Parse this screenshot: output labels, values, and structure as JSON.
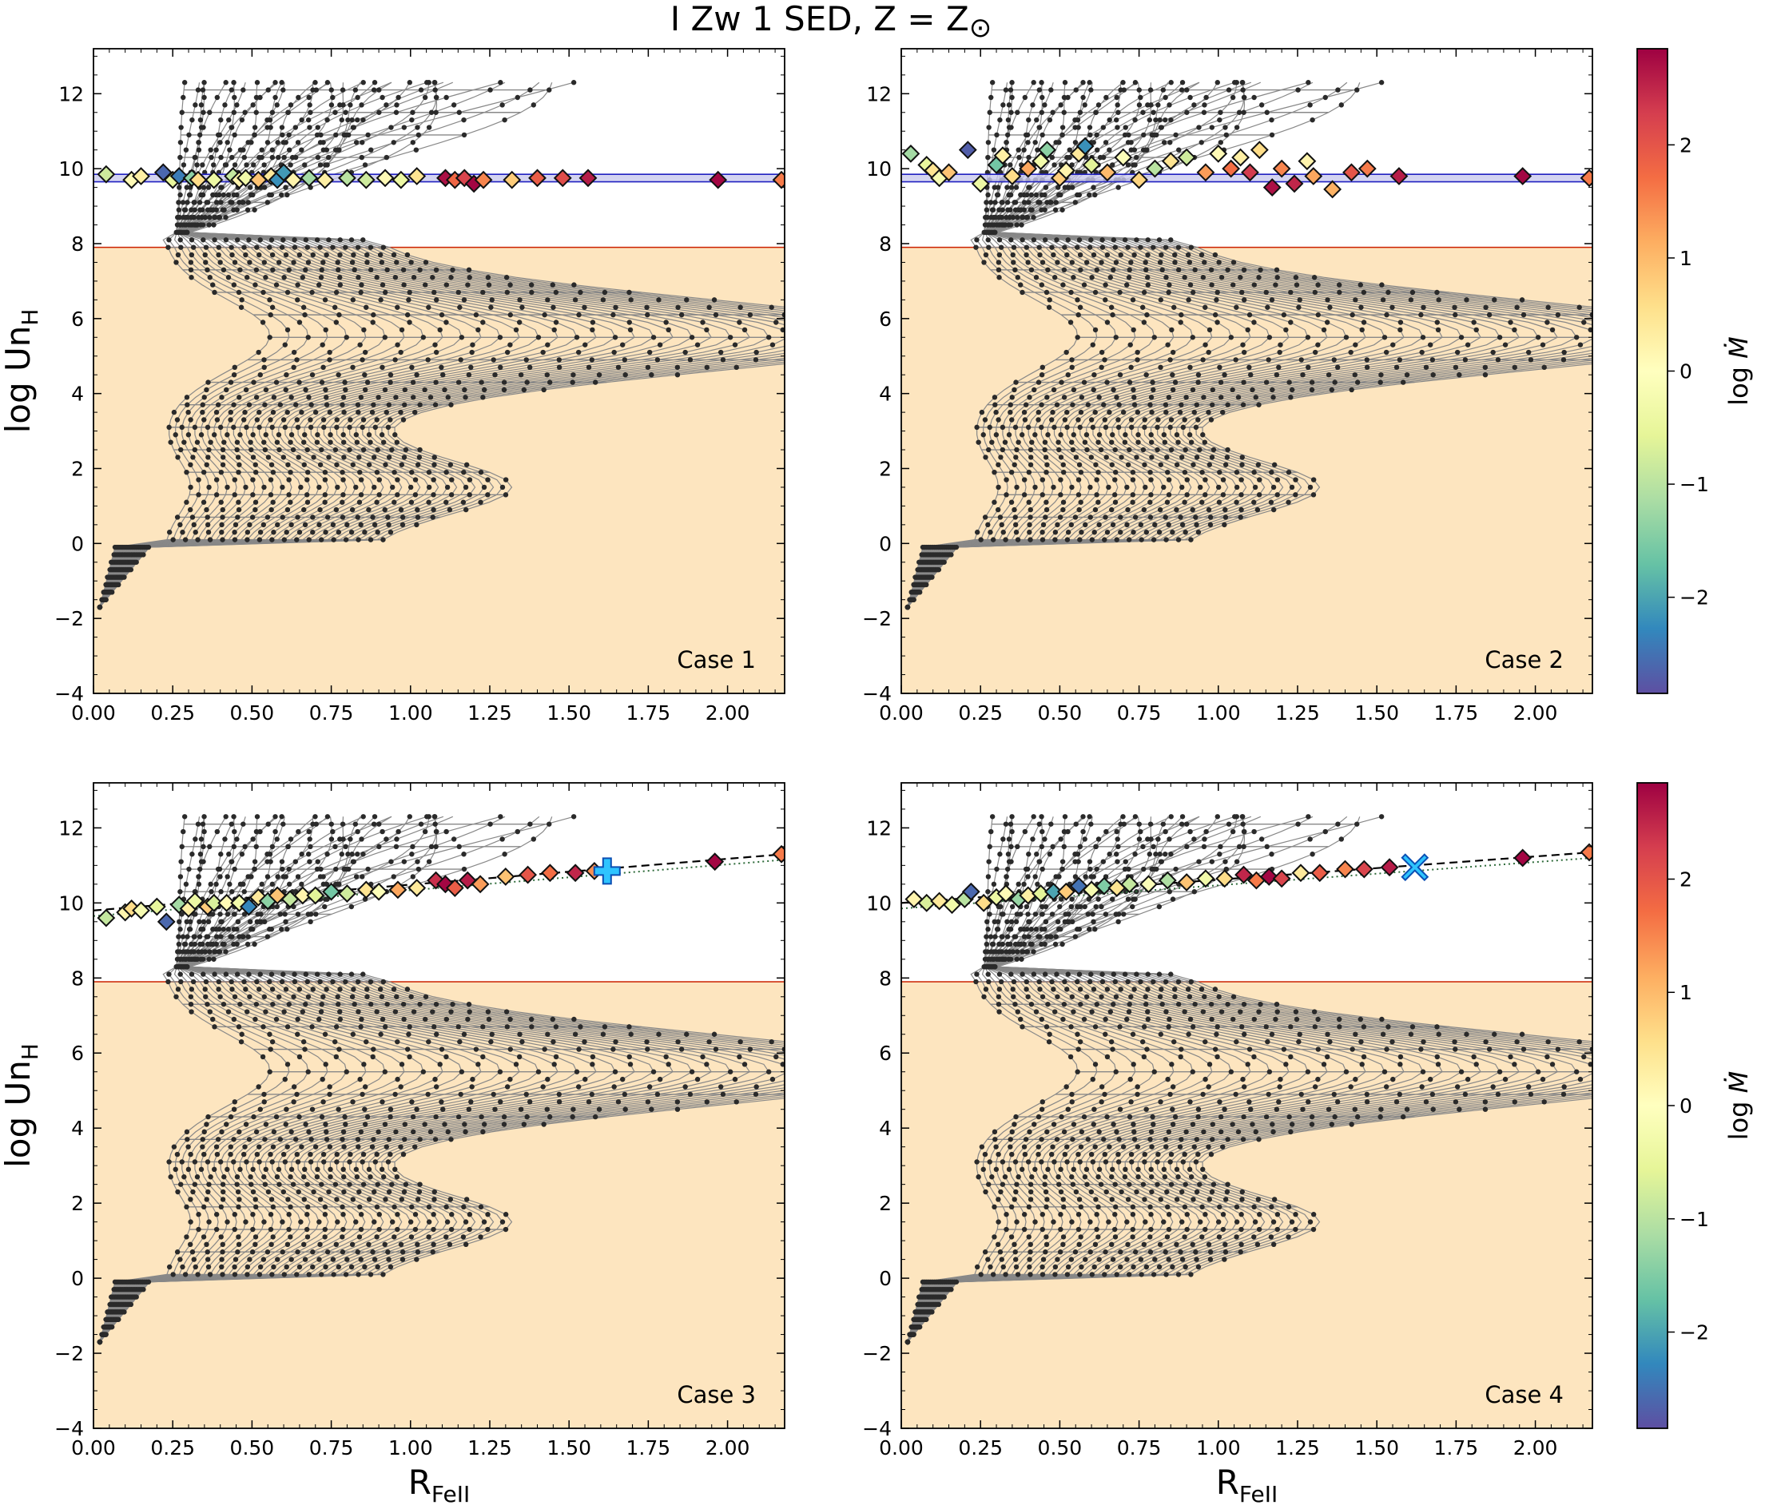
{
  "figure_title": "I Zw 1 SED, Z = Z",
  "figure_title_symbol": "⊙",
  "chart_data": [
    {
      "type": "scatter",
      "panel": "top-left",
      "case_label": "Case 1",
      "xlabel_main": "R",
      "xlabel_sub": "FeII",
      "ylabel_main": "log Un",
      "ylabel_sub": "H",
      "xlim": [
        0.0,
        2.18
      ],
      "ylim": [
        -4,
        13.2
      ],
      "xticks": [
        "0.00",
        "0.25",
        "0.50",
        "0.75",
        "1.00",
        "1.25",
        "1.50",
        "1.75",
        "2.00"
      ],
      "yticks": [
        "−4",
        "−2",
        "0",
        "2",
        "4",
        "6",
        "8",
        "10",
        "12"
      ],
      "shaded_region_ymax": 7.9,
      "band_center": 9.75,
      "band_halfwidth": 0.1,
      "observations": [
        {
          "x": 0.04,
          "y": 9.85,
          "c": -0.8
        },
        {
          "x": 0.12,
          "y": 9.7,
          "c": 0.1
        },
        {
          "x": 0.15,
          "y": 9.8,
          "c": 0.3
        },
        {
          "x": 0.22,
          "y": 9.9,
          "c": -2.6
        },
        {
          "x": 0.25,
          "y": 9.7,
          "c": -0.5
        },
        {
          "x": 0.27,
          "y": 9.8,
          "c": -2.4
        },
        {
          "x": 0.31,
          "y": 9.75,
          "c": -1.4
        },
        {
          "x": 0.33,
          "y": 9.7,
          "c": 0.6
        },
        {
          "x": 0.38,
          "y": 9.7,
          "c": -0.4
        },
        {
          "x": 0.44,
          "y": 9.8,
          "c": -0.9
        },
        {
          "x": 0.46,
          "y": 9.7,
          "c": 0.2
        },
        {
          "x": 0.48,
          "y": 9.75,
          "c": -0.3
        },
        {
          "x": 0.52,
          "y": 9.7,
          "c": 0.9
        },
        {
          "x": 0.56,
          "y": 9.8,
          "c": 0.4
        },
        {
          "x": 0.58,
          "y": 9.7,
          "c": -2.2
        },
        {
          "x": 0.6,
          "y": 9.9,
          "c": -2.1
        },
        {
          "x": 0.63,
          "y": 9.7,
          "c": 0.2
        },
        {
          "x": 0.68,
          "y": 9.75,
          "c": -1.2
        },
        {
          "x": 0.73,
          "y": 9.7,
          "c": 0.3
        },
        {
          "x": 0.8,
          "y": 9.75,
          "c": -1.0
        },
        {
          "x": 0.86,
          "y": 9.7,
          "c": -0.8
        },
        {
          "x": 0.92,
          "y": 9.75,
          "c": 0.1
        },
        {
          "x": 0.97,
          "y": 9.7,
          "c": -0.4
        },
        {
          "x": 1.02,
          "y": 9.8,
          "c": 0.5
        },
        {
          "x": 1.11,
          "y": 9.75,
          "c": 2.7
        },
        {
          "x": 1.14,
          "y": 9.7,
          "c": 1.8
        },
        {
          "x": 1.17,
          "y": 9.75,
          "c": 2.2
        },
        {
          "x": 1.2,
          "y": 9.6,
          "c": 2.8
        },
        {
          "x": 1.23,
          "y": 9.7,
          "c": 1.5
        },
        {
          "x": 1.32,
          "y": 9.7,
          "c": 0.8
        },
        {
          "x": 1.4,
          "y": 9.75,
          "c": 1.9
        },
        {
          "x": 1.48,
          "y": 9.75,
          "c": 2.1
        },
        {
          "x": 1.56,
          "y": 9.75,
          "c": 2.6
        },
        {
          "x": 1.97,
          "y": 9.7,
          "c": 2.8
        },
        {
          "x": 2.17,
          "y": 9.7,
          "c": 1.6
        }
      ]
    },
    {
      "type": "scatter",
      "panel": "top-right",
      "case_label": "Case 2",
      "xlabel_main": "R",
      "xlabel_sub": "FeII",
      "ylabel_main": "log Un",
      "ylabel_sub": "H",
      "xlim": [
        0.0,
        2.18
      ],
      "ylim": [
        -4,
        13.2
      ],
      "xticks": [
        "0.00",
        "0.25",
        "0.50",
        "0.75",
        "1.00",
        "1.25",
        "1.50",
        "1.75",
        "2.00"
      ],
      "yticks": [
        "−4",
        "−2",
        "0",
        "2",
        "4",
        "6",
        "8",
        "10",
        "12"
      ],
      "shaded_region_ymax": 7.9,
      "band_center": 9.75,
      "band_halfwidth": 0.1,
      "observations": [
        {
          "x": 0.03,
          "y": 10.4,
          "c": -1.2
        },
        {
          "x": 0.08,
          "y": 10.1,
          "c": -0.5
        },
        {
          "x": 0.1,
          "y": 9.95,
          "c": 0.5
        },
        {
          "x": 0.12,
          "y": 9.75,
          "c": -0.2
        },
        {
          "x": 0.15,
          "y": 9.9,
          "c": 0.9
        },
        {
          "x": 0.21,
          "y": 10.5,
          "c": -2.7
        },
        {
          "x": 0.25,
          "y": 9.6,
          "c": -0.4
        },
        {
          "x": 0.3,
          "y": 10.1,
          "c": -1.6
        },
        {
          "x": 0.32,
          "y": 10.35,
          "c": 0.3
        },
        {
          "x": 0.35,
          "y": 9.8,
          "c": 0.6
        },
        {
          "x": 0.4,
          "y": 10.0,
          "c": 1.2
        },
        {
          "x": 0.44,
          "y": 10.2,
          "c": -0.3
        },
        {
          "x": 0.46,
          "y": 10.5,
          "c": -1.4
        },
        {
          "x": 0.5,
          "y": 9.75,
          "c": 0.8
        },
        {
          "x": 0.52,
          "y": 9.95,
          "c": 0.2
        },
        {
          "x": 0.56,
          "y": 10.4,
          "c": 0.4
        },
        {
          "x": 0.58,
          "y": 10.6,
          "c": -2.2
        },
        {
          "x": 0.6,
          "y": 10.1,
          "c": -0.6
        },
        {
          "x": 0.65,
          "y": 9.9,
          "c": 1.0
        },
        {
          "x": 0.7,
          "y": 10.3,
          "c": -0.1
        },
        {
          "x": 0.75,
          "y": 9.7,
          "c": 0.7
        },
        {
          "x": 0.8,
          "y": 10.0,
          "c": -1.0
        },
        {
          "x": 0.85,
          "y": 10.2,
          "c": 0.5
        },
        {
          "x": 0.9,
          "y": 10.3,
          "c": -0.8
        },
        {
          "x": 0.96,
          "y": 9.9,
          "c": 1.3
        },
        {
          "x": 1.0,
          "y": 10.4,
          "c": 0.1
        },
        {
          "x": 1.04,
          "y": 10.0,
          "c": 1.7
        },
        {
          "x": 1.07,
          "y": 10.3,
          "c": 0.3
        },
        {
          "x": 1.1,
          "y": 9.9,
          "c": 2.3
        },
        {
          "x": 1.13,
          "y": 10.5,
          "c": 0.6
        },
        {
          "x": 1.17,
          "y": 9.5,
          "c": 2.7
        },
        {
          "x": 1.2,
          "y": 10.0,
          "c": 1.5
        },
        {
          "x": 1.24,
          "y": 9.6,
          "c": 2.5
        },
        {
          "x": 1.28,
          "y": 10.2,
          "c": 0.2
        },
        {
          "x": 1.3,
          "y": 9.8,
          "c": 1.2
        },
        {
          "x": 1.36,
          "y": 9.45,
          "c": 1.1
        },
        {
          "x": 1.42,
          "y": 9.9,
          "c": 2.0
        },
        {
          "x": 1.47,
          "y": 10.0,
          "c": 1.6
        },
        {
          "x": 1.57,
          "y": 9.8,
          "c": 2.6
        },
        {
          "x": 1.96,
          "y": 9.8,
          "c": 2.8
        },
        {
          "x": 2.17,
          "y": 9.75,
          "c": 1.6
        }
      ]
    },
    {
      "type": "scatter",
      "panel": "bottom-left",
      "case_label": "Case 3",
      "xlabel_main": "R",
      "xlabel_sub": "FeII",
      "ylabel_main": "log Un",
      "ylabel_sub": "H",
      "xlim": [
        0.0,
        2.18
      ],
      "ylim": [
        -4,
        13.2
      ],
      "xticks": [
        "0.00",
        "0.25",
        "0.50",
        "0.75",
        "1.00",
        "1.25",
        "1.50",
        "1.75",
        "2.00"
      ],
      "yticks": [
        "−4",
        "−2",
        "0",
        "2",
        "4",
        "6",
        "8",
        "10",
        "12"
      ],
      "shaded_region_ymax": 7.9,
      "trend_line": {
        "x": [
          0.0,
          2.18
        ],
        "y": [
          9.8,
          11.3
        ]
      },
      "fit_marker": {
        "shape": "plus",
        "x": 1.62,
        "y": 10.85
      },
      "observations": [
        {
          "x": 0.04,
          "y": 9.6,
          "c": -0.9
        },
        {
          "x": 0.1,
          "y": 9.75,
          "c": 0.2
        },
        {
          "x": 0.12,
          "y": 9.85,
          "c": 0.6
        },
        {
          "x": 0.15,
          "y": 9.8,
          "c": -0.2
        },
        {
          "x": 0.2,
          "y": 9.9,
          "c": -0.5
        },
        {
          "x": 0.23,
          "y": 9.5,
          "c": -2.6
        },
        {
          "x": 0.27,
          "y": 9.95,
          "c": -1.2
        },
        {
          "x": 0.3,
          "y": 9.85,
          "c": 0.3
        },
        {
          "x": 0.32,
          "y": 10.05,
          "c": -0.4
        },
        {
          "x": 0.36,
          "y": 9.9,
          "c": 0.8
        },
        {
          "x": 0.38,
          "y": 10.0,
          "c": -0.7
        },
        {
          "x": 0.42,
          "y": 10.0,
          "c": 0.1
        },
        {
          "x": 0.46,
          "y": 10.0,
          "c": -0.3
        },
        {
          "x": 0.49,
          "y": 9.9,
          "c": -2.3
        },
        {
          "x": 0.52,
          "y": 10.15,
          "c": 0.4
        },
        {
          "x": 0.55,
          "y": 10.05,
          "c": -1.4
        },
        {
          "x": 0.58,
          "y": 10.2,
          "c": 0.9
        },
        {
          "x": 0.62,
          "y": 10.1,
          "c": -0.9
        },
        {
          "x": 0.66,
          "y": 10.2,
          "c": 0.2
        },
        {
          "x": 0.7,
          "y": 10.2,
          "c": -0.6
        },
        {
          "x": 0.75,
          "y": 10.3,
          "c": -1.6
        },
        {
          "x": 0.8,
          "y": 10.25,
          "c": -0.8
        },
        {
          "x": 0.86,
          "y": 10.35,
          "c": 0.5
        },
        {
          "x": 0.9,
          "y": 10.3,
          "c": -0.1
        },
        {
          "x": 0.96,
          "y": 10.35,
          "c": 1.2
        },
        {
          "x": 1.02,
          "y": 10.4,
          "c": 0.4
        },
        {
          "x": 1.08,
          "y": 10.6,
          "c": 2.4
        },
        {
          "x": 1.11,
          "y": 10.5,
          "c": 2.8
        },
        {
          "x": 1.14,
          "y": 10.4,
          "c": 1.9
        },
        {
          "x": 1.18,
          "y": 10.6,
          "c": 2.6
        },
        {
          "x": 1.22,
          "y": 10.5,
          "c": 1.3
        },
        {
          "x": 1.3,
          "y": 10.7,
          "c": 0.9
        },
        {
          "x": 1.37,
          "y": 10.75,
          "c": 2.0
        },
        {
          "x": 1.44,
          "y": 10.8,
          "c": 1.7
        },
        {
          "x": 1.52,
          "y": 10.8,
          "c": 2.5
        },
        {
          "x": 1.58,
          "y": 10.85,
          "c": 1.4
        },
        {
          "x": 1.96,
          "y": 11.1,
          "c": 2.8
        },
        {
          "x": 2.17,
          "y": 11.3,
          "c": 1.6
        }
      ]
    },
    {
      "type": "scatter",
      "panel": "bottom-right",
      "case_label": "Case 4",
      "xlabel_main": "R",
      "xlabel_sub": "FeII",
      "ylabel_main": "log Un",
      "ylabel_sub": "H",
      "xlim": [
        0.0,
        2.18
      ],
      "ylim": [
        -4,
        13.2
      ],
      "xticks": [
        "0.00",
        "0.25",
        "0.50",
        "0.75",
        "1.00",
        "1.25",
        "1.50",
        "1.75",
        "2.00"
      ],
      "yticks": [
        "−4",
        "−2",
        "0",
        "2",
        "4",
        "6",
        "8",
        "10",
        "12"
      ],
      "shaded_region_ymax": 7.9,
      "trend_line": {
        "x": [
          0.0,
          2.18
        ],
        "y": [
          10.0,
          11.35
        ]
      },
      "fit_marker": {
        "shape": "cross",
        "x": 1.62,
        "y": 10.95
      },
      "observations": [
        {
          "x": 0.04,
          "y": 10.1,
          "c": 0.2
        },
        {
          "x": 0.08,
          "y": 10.0,
          "c": -0.7
        },
        {
          "x": 0.12,
          "y": 10.05,
          "c": 0.4
        },
        {
          "x": 0.16,
          "y": 9.95,
          "c": -0.3
        },
        {
          "x": 0.2,
          "y": 10.1,
          "c": -1.0
        },
        {
          "x": 0.22,
          "y": 10.3,
          "c": -2.6
        },
        {
          "x": 0.26,
          "y": 10.0,
          "c": 0.6
        },
        {
          "x": 0.3,
          "y": 10.15,
          "c": -0.4
        },
        {
          "x": 0.33,
          "y": 10.25,
          "c": 0.1
        },
        {
          "x": 0.37,
          "y": 10.1,
          "c": -1.3
        },
        {
          "x": 0.4,
          "y": 10.2,
          "c": 0.3
        },
        {
          "x": 0.44,
          "y": 10.25,
          "c": -0.6
        },
        {
          "x": 0.48,
          "y": 10.3,
          "c": -2.0
        },
        {
          "x": 0.52,
          "y": 10.3,
          "c": 0.8
        },
        {
          "x": 0.56,
          "y": 10.45,
          "c": -2.5
        },
        {
          "x": 0.6,
          "y": 10.35,
          "c": -0.2
        },
        {
          "x": 0.64,
          "y": 10.45,
          "c": -1.5
        },
        {
          "x": 0.68,
          "y": 10.4,
          "c": 0.5
        },
        {
          "x": 0.72,
          "y": 10.5,
          "c": -0.9
        },
        {
          "x": 0.78,
          "y": 10.5,
          "c": -0.1
        },
        {
          "x": 0.84,
          "y": 10.6,
          "c": -1.1
        },
        {
          "x": 0.9,
          "y": 10.55,
          "c": 0.9
        },
        {
          "x": 0.96,
          "y": 10.65,
          "c": -0.3
        },
        {
          "x": 1.02,
          "y": 10.65,
          "c": 0.6
        },
        {
          "x": 1.08,
          "y": 10.75,
          "c": 2.5
        },
        {
          "x": 1.12,
          "y": 10.6,
          "c": 1.6
        },
        {
          "x": 1.16,
          "y": 10.7,
          "c": 2.8
        },
        {
          "x": 1.2,
          "y": 10.65,
          "c": 2.2
        },
        {
          "x": 1.26,
          "y": 10.8,
          "c": 0.4
        },
        {
          "x": 1.32,
          "y": 10.8,
          "c": 1.9
        },
        {
          "x": 1.4,
          "y": 10.9,
          "c": 1.5
        },
        {
          "x": 1.46,
          "y": 10.9,
          "c": 2.2
        },
        {
          "x": 1.54,
          "y": 10.95,
          "c": 2.6
        },
        {
          "x": 1.96,
          "y": 11.2,
          "c": 2.8
        },
        {
          "x": 2.17,
          "y": 11.35,
          "c": 1.6
        }
      ]
    }
  ],
  "colorbars": [
    {
      "label_main": "log ",
      "label_symbol": "Ṁ",
      "range": [
        -2.85,
        2.85
      ],
      "ticks": [
        "−2",
        "−1",
        "0",
        "1",
        "2"
      ],
      "colormap": "Spectral_r"
    },
    {
      "label_main": "log ",
      "label_symbol": "Ṁ",
      "range": [
        -2.85,
        2.85
      ],
      "ticks": [
        "−2",
        "−1",
        "0",
        "1",
        "2"
      ],
      "colormap": "Spectral_r"
    }
  ],
  "colors": {
    "shaded": "#fde5bf",
    "threshold_line": "#cc2200",
    "band": "#2020c0",
    "grid_line": "#888888",
    "grid_point": "#2a2a2a",
    "fit_marker": "#2ec4ff"
  }
}
